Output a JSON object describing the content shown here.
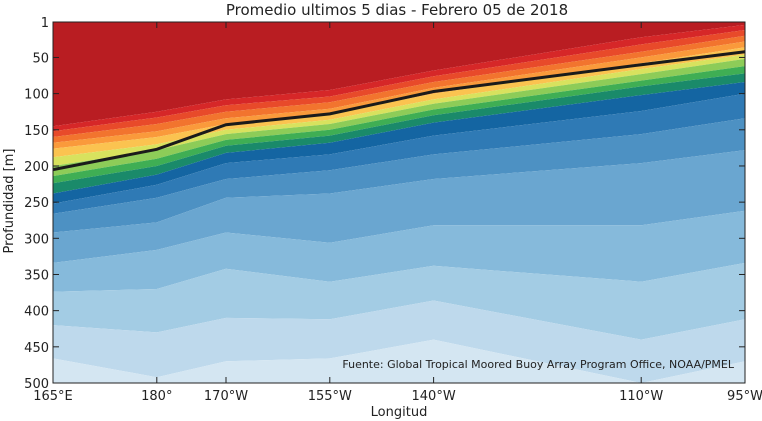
{
  "chart_data": {
    "type": "contour",
    "title": "Promedio ultimos 5 dias - Febrero 05 de 2018",
    "xlabel": "Longitud",
    "ylabel": "Profundidad [m]",
    "source": "Fuente: Global Tropical Moored Buoy Array Program Office, NOAA/PMEL",
    "x_tick_labels": [
      "165°E",
      "180°",
      "170°W",
      "155°W",
      "140°W",
      "110°W",
      "95°W"
    ],
    "x_ticks": [
      165,
      180,
      190,
      205,
      220,
      250,
      265
    ],
    "y_tick_labels": [
      "1",
      "50",
      "100",
      "150",
      "200",
      "250",
      "300",
      "350",
      "400",
      "450",
      "500"
    ],
    "y_ticks": [
      1,
      50,
      100,
      150,
      200,
      250,
      300,
      350,
      400,
      450,
      500
    ],
    "xlim": [
      165,
      265
    ],
    "ylim": [
      1,
      500
    ],
    "y_reversed": true,
    "grid": false,
    "stations": [
      165,
      180,
      190,
      205,
      220,
      250,
      265
    ],
    "isotherm_depth_20C": [
      205,
      177,
      143,
      128,
      97,
      60,
      42
    ],
    "color_scale": [
      "#b91d22",
      "#d62728",
      "#e84a2a",
      "#f2742e",
      "#fa9a3b",
      "#fbc350",
      "#d8e25e",
      "#8dcc58",
      "#3fae54",
      "#1a8a6a",
      "#1465a2",
      "#2f7ab5",
      "#4d91c3",
      "#6aa6d0",
      "#86badb",
      "#a3cce4",
      "#bed9ec",
      "#d4e6f2"
    ],
    "boundary_depths_m": [
      [
        145,
        125,
        108,
        95,
        68,
        22,
        5
      ],
      [
        152,
        133,
        116,
        104,
        76,
        32,
        12
      ],
      [
        160,
        142,
        125,
        112,
        84,
        42,
        20
      ],
      [
        168,
        152,
        134,
        121,
        92,
        50,
        28
      ],
      [
        176,
        160,
        142,
        128,
        100,
        58,
        36
      ],
      [
        188,
        170,
        150,
        136,
        108,
        66,
        46
      ],
      [
        200,
        178,
        156,
        142,
        114,
        73,
        52
      ],
      [
        214,
        190,
        164,
        150,
        122,
        82,
        62
      ],
      [
        224,
        200,
        172,
        158,
        130,
        90,
        72
      ],
      [
        238,
        212,
        182,
        168,
        140,
        102,
        84
      ],
      [
        252,
        226,
        196,
        184,
        158,
        124,
        100
      ],
      [
        266,
        244,
        218,
        206,
        184,
        156,
        134
      ],
      [
        292,
        278,
        244,
        238,
        218,
        196,
        178
      ],
      [
        334,
        316,
        292,
        306,
        282,
        282,
        262
      ],
      [
        374,
        370,
        342,
        360,
        338,
        360,
        334
      ],
      [
        420,
        430,
        410,
        412,
        386,
        440,
        412
      ],
      [
        466,
        492,
        470,
        466,
        440,
        500,
        470
      ]
    ]
  }
}
